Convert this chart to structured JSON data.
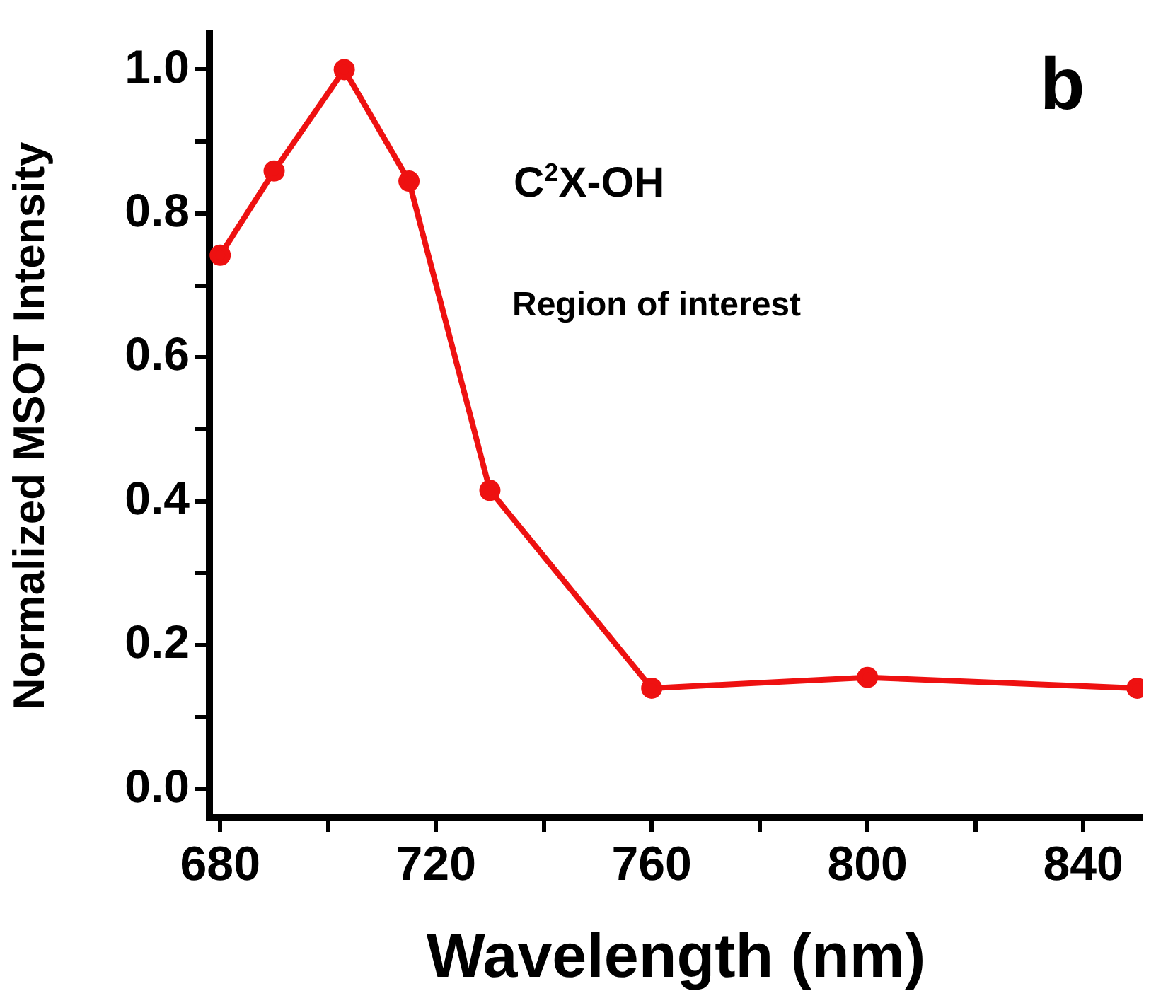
{
  "chart_data": {
    "type": "line",
    "xlabel": "Wavelength (nm)",
    "ylabel": "Normalized MSOT Intensity",
    "annotations": [
      "C$^{2}$X-OH",
      "Region of interest",
      "b"
    ],
    "x": [
      680,
      690,
      703,
      715,
      730,
      760,
      800,
      850
    ],
    "series": [
      {
        "color": "#ee1111",
        "values": [
          0.742,
          0.859,
          1.0,
          0.845,
          0.415,
          0.14,
          0.155,
          0.14
        ]
      }
    ],
    "xlim": [
      678,
      851
    ],
    "ylim": [
      -0.04,
      1.05
    ],
    "xticks": [
      680,
      {
        "value": 700,
        "label": null
      },
      720,
      {
        "value": 740,
        "label": null
      },
      760,
      {
        "value": 780,
        "label": null
      },
      800,
      {
        "value": 820,
        "label": null
      },
      840
    ],
    "yticks": [
      {
        "value": 0,
        "label": "0.0"
      },
      {
        "value": 0.1,
        "label": null
      },
      {
        "value": 0.2,
        "label": "0.2"
      },
      {
        "value": 0.3,
        "label": null
      },
      {
        "value": 0.4,
        "label": "0.4"
      },
      {
        "value": 0.5,
        "label": null
      },
      {
        "value": 0.6,
        "label": "0.6"
      },
      {
        "value": 0.7,
        "label": null
      },
      {
        "value": 0.8,
        "label": "0.8"
      },
      {
        "value": 0.9,
        "label": null
      },
      {
        "value": 1.0,
        "label": "1.0"
      }
    ],
    "grid": false,
    "legend": false,
    "marker": "circle",
    "line_style": "solid"
  }
}
